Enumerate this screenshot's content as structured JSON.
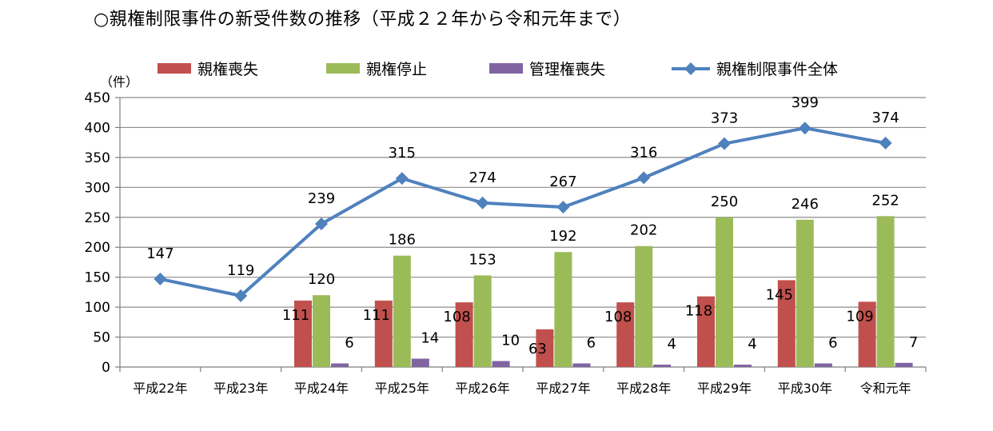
{
  "chart_data": {
    "type": "bar",
    "title": "○親権制限事件の新受件数の推移（平成２２年から令和元年まで）",
    "ylabel": "（件）",
    "ylim": [
      0,
      450
    ],
    "yticks": [
      0,
      50,
      100,
      150,
      200,
      250,
      300,
      350,
      400,
      450
    ],
    "grid": true,
    "legend_position": "top",
    "categories": [
      "平成22年",
      "平成23年",
      "平成24年",
      "平成25年",
      "平成26年",
      "平成27年",
      "平成28年",
      "平成29年",
      "平成30年",
      "令和元年"
    ],
    "series": [
      {
        "name": "親権喪失",
        "type": "bar",
        "color": "#c0504d",
        "values": [
          null,
          null,
          111,
          111,
          108,
          63,
          108,
          118,
          145,
          109
        ]
      },
      {
        "name": "親権停止",
        "type": "bar",
        "color": "#9bbb59",
        "values": [
          null,
          null,
          120,
          186,
          153,
          192,
          202,
          250,
          246,
          252
        ]
      },
      {
        "name": "管理権喪失",
        "type": "bar",
        "color": "#8064a2",
        "values": [
          null,
          null,
          6,
          14,
          10,
          6,
          4,
          4,
          6,
          7
        ]
      },
      {
        "name": "親権制限事件全体",
        "type": "line",
        "color": "#4f81bd",
        "values": [
          147,
          119,
          239,
          315,
          274,
          267,
          316,
          373,
          399,
          374
        ]
      }
    ]
  }
}
